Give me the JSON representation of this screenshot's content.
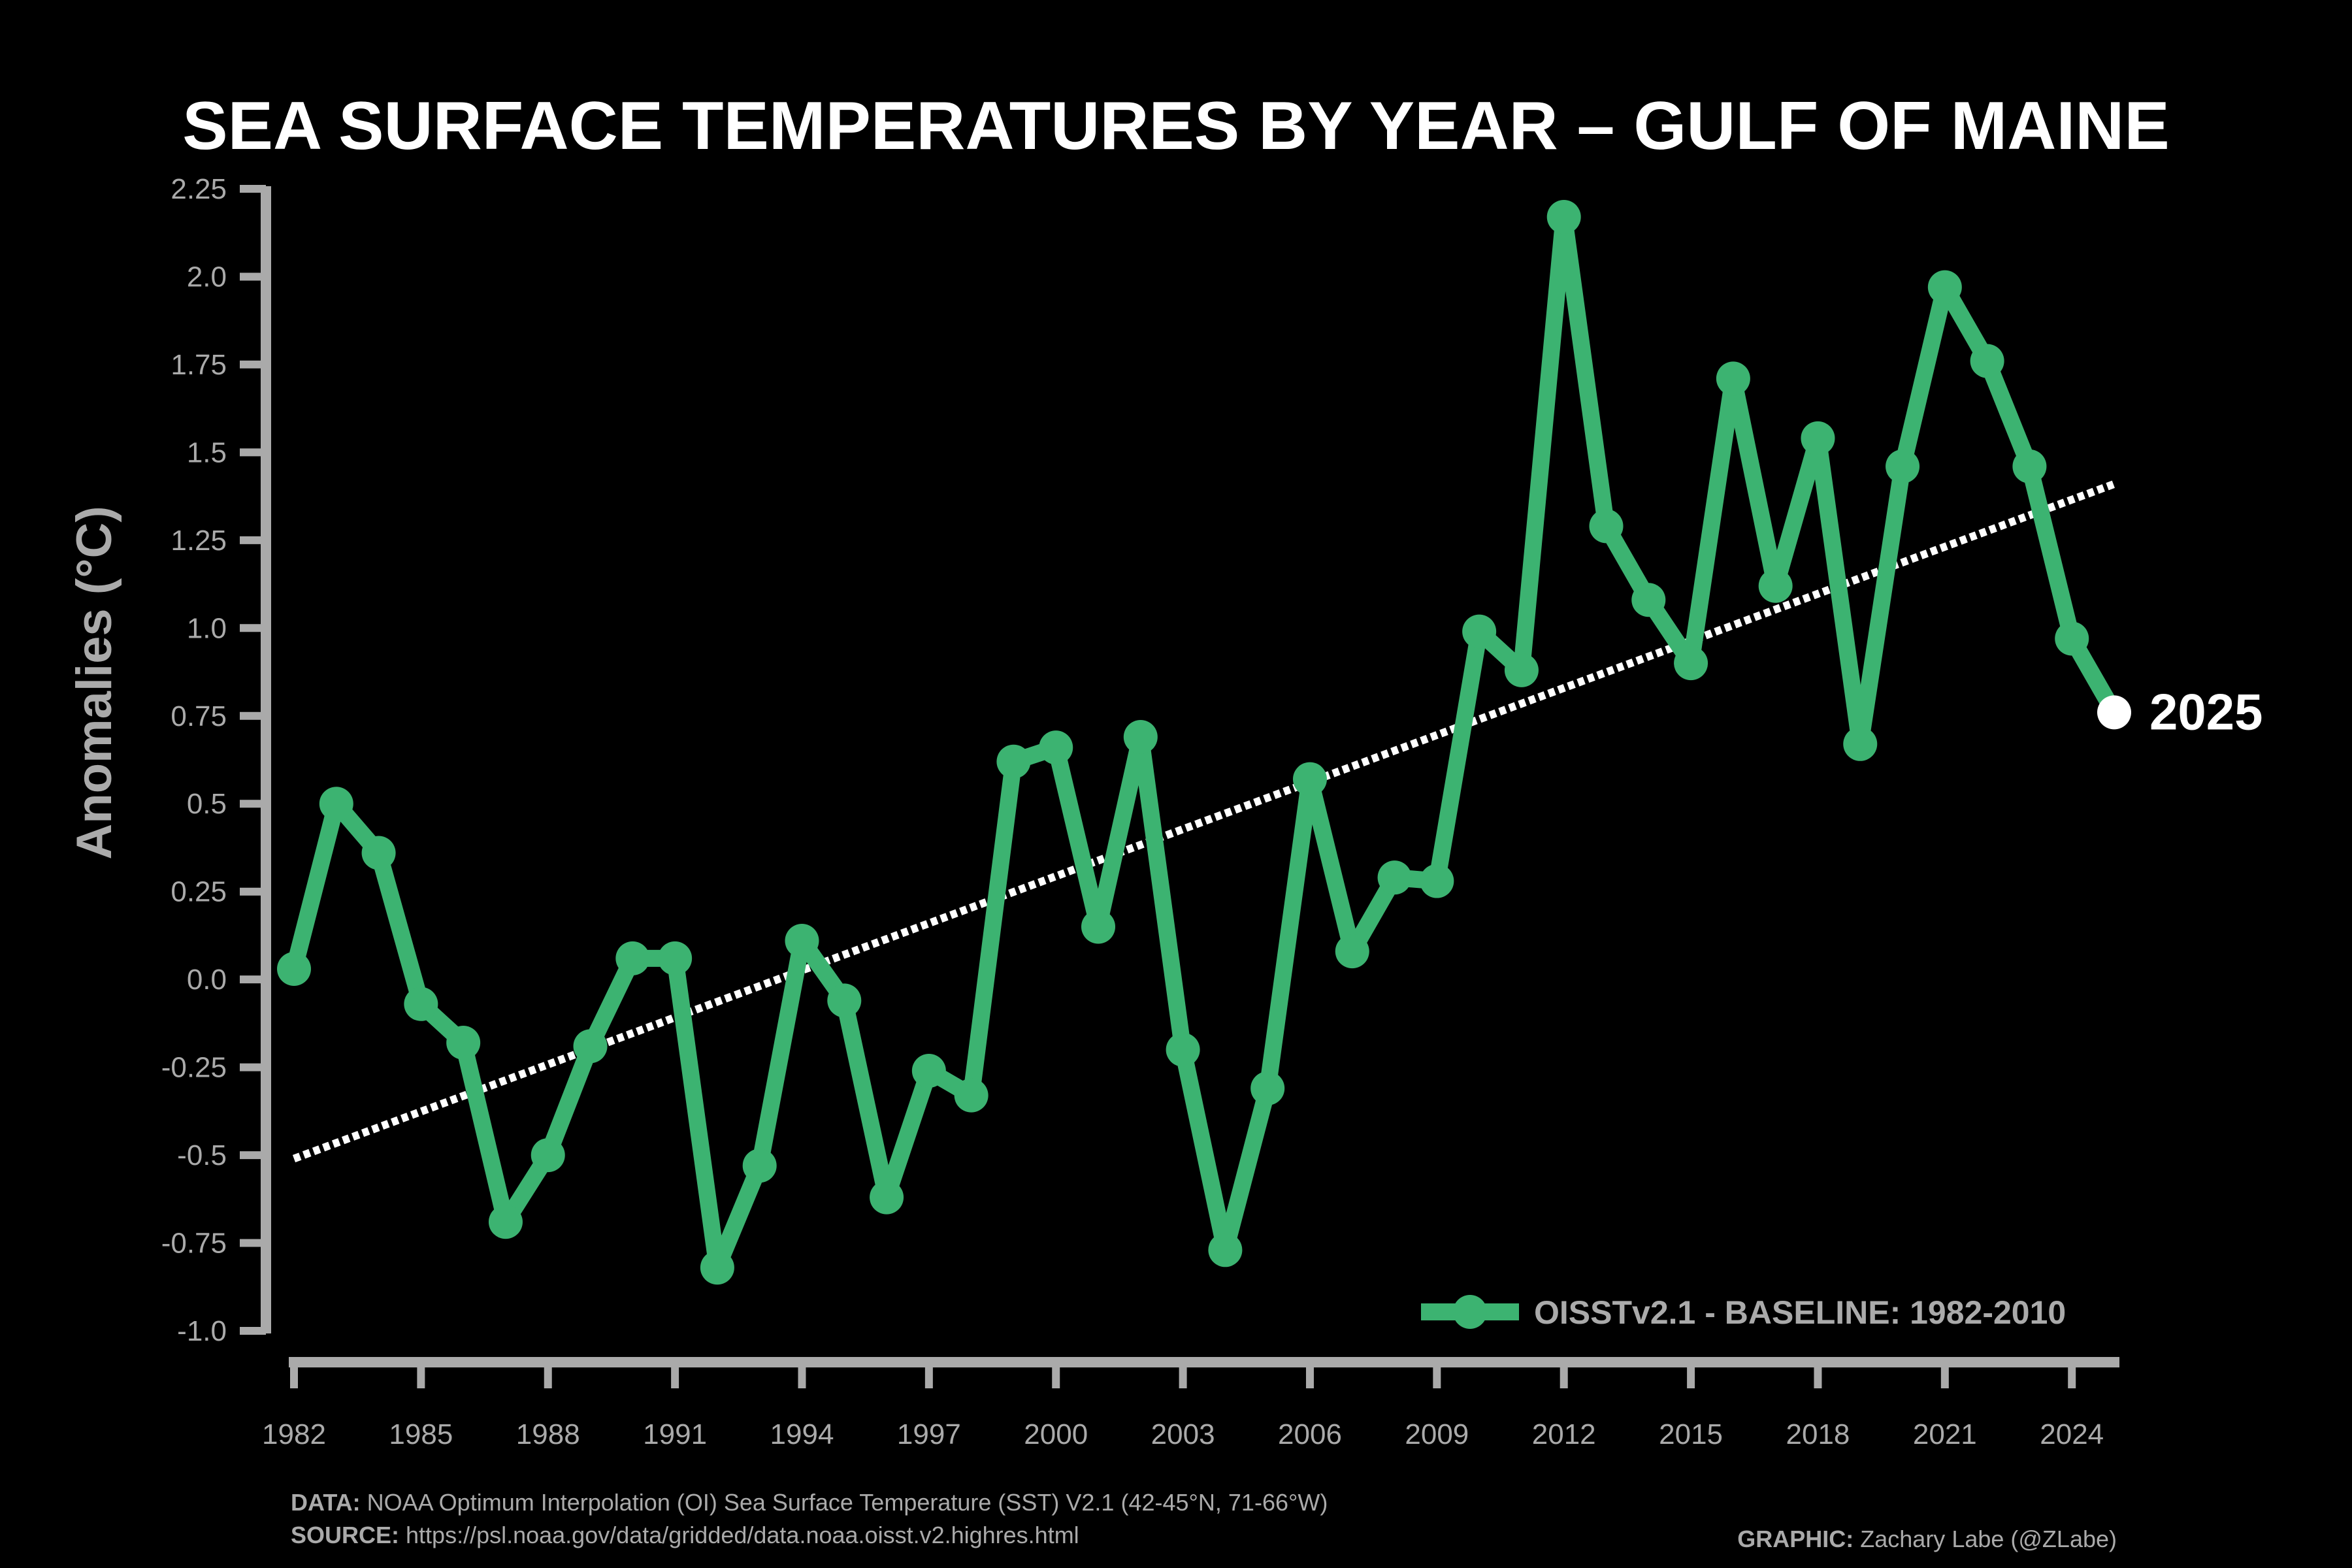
{
  "chart_data": {
    "type": "line",
    "title": "SEA SURFACE TEMPERATURES BY YEAR – GULF OF MAINE",
    "xlabel": "",
    "ylabel": "Anomalies (°C)",
    "x": [
      1982,
      1983,
      1984,
      1985,
      1986,
      1987,
      1988,
      1989,
      1990,
      1991,
      1992,
      1993,
      1994,
      1995,
      1996,
      1997,
      1998,
      1999,
      2000,
      2001,
      2002,
      2003,
      2004,
      2005,
      2006,
      2007,
      2008,
      2009,
      2010,
      2011,
      2012,
      2013,
      2014,
      2015,
      2016,
      2017,
      2018,
      2019,
      2020,
      2021,
      2022,
      2023,
      2024,
      2025
    ],
    "series": [
      {
        "name": "OISSTv2.1 - BASELINE: 1982-2010",
        "color": "#3cb371",
        "values": [
          0.03,
          0.5,
          0.36,
          -0.07,
          -0.18,
          -0.69,
          -0.5,
          -0.19,
          0.06,
          0.06,
          -0.82,
          -0.53,
          0.11,
          -0.06,
          -0.62,
          -0.26,
          -0.33,
          0.62,
          0.66,
          0.15,
          0.69,
          -0.2,
          -0.77,
          -0.31,
          0.57,
          0.08,
          0.29,
          0.28,
          0.99,
          0.88,
          2.17,
          1.29,
          1.08,
          0.9,
          1.71,
          1.12,
          1.54,
          0.67,
          1.46,
          1.97,
          1.76,
          1.46,
          0.97,
          0.76
        ]
      }
    ],
    "trend": {
      "start": {
        "x": 1982,
        "y": -0.51
      },
      "end": {
        "x": 2025,
        "y": 1.41
      },
      "style": "dotted",
      "color": "#ffffff"
    },
    "highlight": {
      "x": 2025,
      "y": 0.76,
      "label": "2025",
      "color": "#ffffff"
    },
    "ylim": [
      -1.0,
      2.25
    ],
    "xlim": [
      1982,
      2025
    ],
    "yticks": [
      -1.0,
      -0.75,
      -0.5,
      -0.25,
      0.0,
      0.25,
      0.5,
      0.75,
      1.0,
      1.25,
      1.5,
      1.75,
      2.0,
      2.25
    ],
    "ytick_labels": [
      "-1.0",
      "-0.75",
      "-0.5",
      "-0.25",
      "0.0",
      "0.25",
      "0.5",
      "0.75",
      "1.0",
      "1.25",
      "1.5",
      "1.75",
      "2.0",
      "2.25"
    ],
    "xticks": [
      1982,
      1985,
      1988,
      1991,
      1994,
      1997,
      2000,
      2003,
      2006,
      2009,
      2012,
      2015,
      2018,
      2021,
      2024
    ],
    "xtick_labels": [
      "1982",
      "1985",
      "1988",
      "1991",
      "1994",
      "1997",
      "2000",
      "2003",
      "2006",
      "2009",
      "2012",
      "2015",
      "2018",
      "2021",
      "2024"
    ],
    "grid": false,
    "legend": "bottom-right",
    "background": "#000000",
    "axis_color": "#aaaaaa"
  },
  "footer": {
    "data_label": "DATA:",
    "data_text": " NOAA Optimum Interpolation (OI) Sea Surface Temperature (SST) V2.1 (42-45°N, 71-66°W)",
    "source_label": "SOURCE:",
    "source_text": " https://psl.noaa.gov/data/gridded/data.noaa.oisst.v2.highres.html",
    "graphic_label": "GRAPHIC:",
    "graphic_text": " Zachary Labe (@ZLabe)"
  }
}
